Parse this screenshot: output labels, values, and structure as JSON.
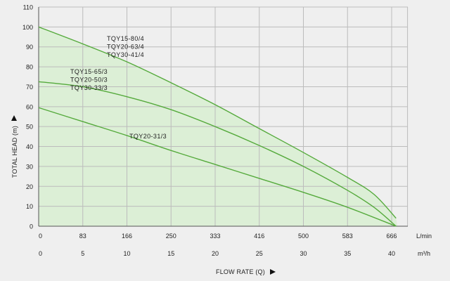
{
  "chart_data": {
    "type": "line",
    "title": "",
    "ylabel": "TOTAL HEAD (m)",
    "xlabel": "FLOW RATE (Q)",
    "x_unit_primary": "L/min",
    "x_unit_secondary": "m³/h",
    "ylim": [
      0,
      110
    ],
    "xlim": [
      0,
      41
    ],
    "y_ticks": [
      "0",
      "10",
      "20",
      "30",
      "40",
      "50",
      "60",
      "70",
      "80",
      "90",
      "100",
      "110"
    ],
    "x_ticks_primary": [
      "0",
      "83",
      "166",
      "250",
      "333",
      "416",
      "500",
      "583",
      "666"
    ],
    "x_ticks_secondary": [
      "0",
      "5",
      "10",
      "15",
      "20",
      "25",
      "30",
      "35",
      "40"
    ],
    "x_tick_values": [
      0,
      5,
      10,
      15,
      20,
      25,
      30,
      35,
      40
    ],
    "grid": true,
    "fill_color": "#dcefd6",
    "line_color": "#55aa3c",
    "series": [
      {
        "label_lines": [
          "TQY15-80/4",
          "TQY20-63/4",
          "TQY30-41/4"
        ],
        "x": [
          0,
          5,
          10,
          15,
          20,
          25,
          30,
          35,
          38,
          40.5
        ],
        "y": [
          100,
          91.5,
          82.5,
          72,
          61,
          49,
          37,
          24.5,
          16,
          4
        ]
      },
      {
        "label_lines": [
          "TQY15-65/3",
          "TQY20-50/3",
          "TQY30-33/3"
        ],
        "x": [
          0,
          5,
          10,
          15,
          20,
          25,
          30,
          35,
          38,
          40.5
        ],
        "y": [
          72.5,
          70,
          65,
          58.5,
          50,
          40.5,
          30,
          18,
          9.5,
          0
        ]
      },
      {
        "label_lines": [
          "TQY20-31/3"
        ],
        "x": [
          0,
          5,
          10,
          15,
          20,
          25,
          30,
          35,
          40.5
        ],
        "y": [
          59.5,
          52.5,
          45.5,
          38,
          31,
          24,
          17,
          9.5,
          0
        ]
      }
    ]
  }
}
